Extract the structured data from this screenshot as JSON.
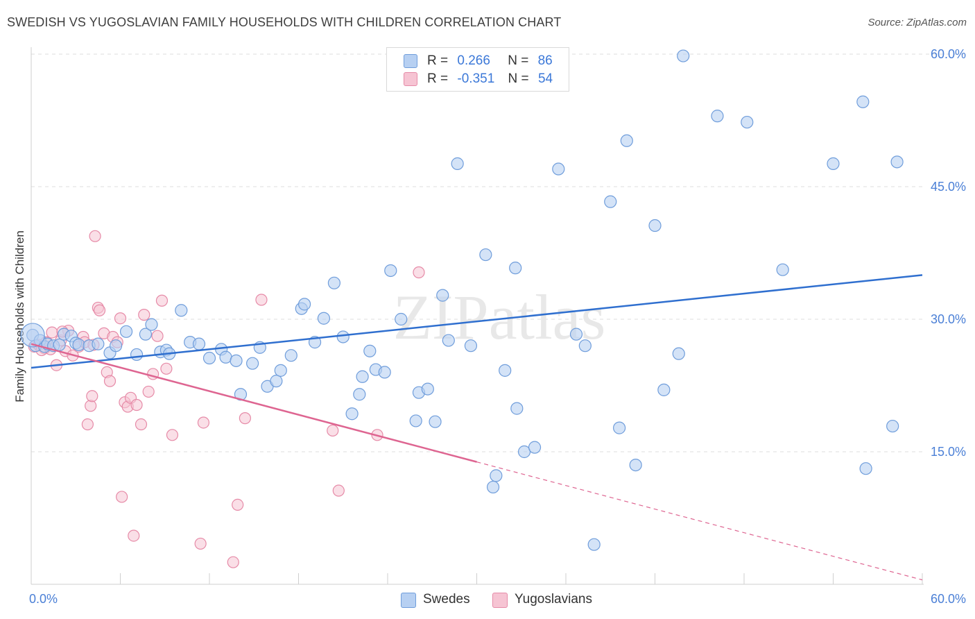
{
  "title": "SWEDISH VS YUGOSLAVIAN FAMILY HOUSEHOLDS WITH CHILDREN CORRELATION CHART",
  "source": "Source: ZipAtlas.com",
  "watermark": "ZIPatlas",
  "colors": {
    "swedes_fill": "#b7d0f2",
    "swedes_stroke": "#6f9ddb",
    "swedes_line": "#2f6fcf",
    "yugo_fill": "#f6c4d3",
    "yugo_stroke": "#e68aa7",
    "yugo_line": "#de6591",
    "axis_label": "#4a7fd6",
    "grid": "#dcdcdc"
  },
  "legend": {
    "rows": [
      {
        "r_label": "R =",
        "r_value": "0.266",
        "n_label": "N =",
        "n_value": "86"
      },
      {
        "r_label": "R =",
        "r_value": "-0.351",
        "n_label": "N =",
        "n_value": "54"
      }
    ]
  },
  "bottom_legend": {
    "swedes": "Swedes",
    "yugoslavians": "Yugoslavians"
  },
  "chart_data": {
    "type": "scatter",
    "xlabel": "",
    "ylabel": "Family Households with Children",
    "xlim": [
      0,
      60
    ],
    "ylim": [
      0,
      60
    ],
    "x_tick_labels": [
      "0.0%",
      "60.0%"
    ],
    "y_tick_labels": [
      "15.0%",
      "30.0%",
      "45.0%",
      "60.0%"
    ],
    "y_ticks": [
      15,
      30,
      45,
      60
    ],
    "x_minor_ticks": [
      0,
      6,
      12,
      18,
      24,
      30,
      36,
      42,
      48,
      54,
      60
    ],
    "grid": true,
    "series": [
      {
        "name": "Swedes",
        "trend": {
          "x": [
            0,
            60
          ],
          "y": [
            24.5,
            35.0
          ],
          "dashed_from": null
        },
        "points": [
          [
            0.1,
            28.2
          ],
          [
            0.3,
            27.0
          ],
          [
            0.6,
            27.6
          ],
          [
            0.9,
            26.9
          ],
          [
            1.1,
            27.2
          ],
          [
            1.5,
            27.0
          ],
          [
            1.9,
            27.1
          ],
          [
            2.2,
            28.3
          ],
          [
            2.7,
            28.1
          ],
          [
            3.0,
            27.3
          ],
          [
            3.2,
            27.1
          ],
          [
            3.9,
            27.0
          ],
          [
            4.5,
            27.2
          ],
          [
            5.3,
            26.2
          ],
          [
            5.7,
            27.0
          ],
          [
            6.4,
            28.6
          ],
          [
            7.1,
            26.0
          ],
          [
            7.7,
            28.3
          ],
          [
            8.1,
            29.4
          ],
          [
            8.7,
            26.3
          ],
          [
            9.1,
            26.5
          ],
          [
            9.3,
            26.1
          ],
          [
            10.1,
            31.0
          ],
          [
            10.7,
            27.4
          ],
          [
            11.3,
            27.2
          ],
          [
            12.0,
            25.6
          ],
          [
            12.8,
            26.6
          ],
          [
            13.1,
            25.7
          ],
          [
            13.8,
            25.3
          ],
          [
            14.1,
            21.5
          ],
          [
            14.9,
            25.0
          ],
          [
            15.4,
            26.8
          ],
          [
            15.9,
            22.4
          ],
          [
            16.5,
            23.0
          ],
          [
            16.8,
            24.2
          ],
          [
            17.5,
            25.9
          ],
          [
            18.2,
            31.2
          ],
          [
            18.4,
            31.7
          ],
          [
            19.1,
            27.4
          ],
          [
            19.7,
            30.1
          ],
          [
            20.4,
            34.1
          ],
          [
            21.0,
            28.0
          ],
          [
            21.6,
            19.3
          ],
          [
            22.1,
            21.5
          ],
          [
            22.3,
            23.5
          ],
          [
            22.8,
            26.4
          ],
          [
            23.2,
            24.3
          ],
          [
            23.8,
            24.0
          ],
          [
            24.2,
            35.5
          ],
          [
            24.9,
            30.0
          ],
          [
            25.9,
            18.5
          ],
          [
            26.1,
            21.7
          ],
          [
            26.7,
            22.1
          ],
          [
            27.2,
            18.4
          ],
          [
            27.7,
            32.7
          ],
          [
            28.1,
            27.6
          ],
          [
            28.7,
            47.6
          ],
          [
            29.6,
            27.0
          ],
          [
            30.6,
            37.3
          ],
          [
            31.1,
            11.0
          ],
          [
            31.3,
            12.3
          ],
          [
            31.9,
            24.2
          ],
          [
            32.6,
            35.8
          ],
          [
            32.7,
            19.9
          ],
          [
            33.2,
            15.0
          ],
          [
            33.9,
            15.5
          ],
          [
            35.5,
            47.0
          ],
          [
            36.7,
            28.3
          ],
          [
            37.3,
            27.0
          ],
          [
            37.9,
            4.5
          ],
          [
            39.0,
            43.3
          ],
          [
            39.6,
            17.7
          ],
          [
            40.1,
            50.2
          ],
          [
            40.7,
            13.5
          ],
          [
            42.0,
            40.6
          ],
          [
            42.6,
            22.0
          ],
          [
            43.6,
            26.1
          ],
          [
            43.9,
            59.8
          ],
          [
            46.2,
            53.0
          ],
          [
            48.2,
            52.3
          ],
          [
            50.6,
            35.6
          ],
          [
            54.0,
            47.6
          ],
          [
            56.0,
            54.6
          ],
          [
            56.2,
            13.1
          ],
          [
            58.0,
            17.9
          ],
          [
            58.3,
            47.8
          ]
        ]
      },
      {
        "name": "Yugoslavians",
        "trend": {
          "x": [
            0,
            60
          ],
          "y": [
            27.2,
            0.5
          ],
          "dashed_from": 30
        },
        "points": [
          [
            0.2,
            26.9
          ],
          [
            0.5,
            27.1
          ],
          [
            0.9,
            26.7
          ],
          [
            1.1,
            27.3
          ],
          [
            1.4,
            28.5
          ],
          [
            1.7,
            24.8
          ],
          [
            2.0,
            27.6
          ],
          [
            2.3,
            26.4
          ],
          [
            2.5,
            28.7
          ],
          [
            2.8,
            25.9
          ],
          [
            3.2,
            26.9
          ],
          [
            3.5,
            28.0
          ],
          [
            3.6,
            27.4
          ],
          [
            3.8,
            18.1
          ],
          [
            4.0,
            20.2
          ],
          [
            4.1,
            21.3
          ],
          [
            4.2,
            27.1
          ],
          [
            4.3,
            39.4
          ],
          [
            4.5,
            31.3
          ],
          [
            4.6,
            31.0
          ],
          [
            4.9,
            28.4
          ],
          [
            5.1,
            24.0
          ],
          [
            5.3,
            23.0
          ],
          [
            5.5,
            28.0
          ],
          [
            5.8,
            27.4
          ],
          [
            6.0,
            30.1
          ],
          [
            6.1,
            9.9
          ],
          [
            6.3,
            20.6
          ],
          [
            6.5,
            20.1
          ],
          [
            6.7,
            21.1
          ],
          [
            6.9,
            5.5
          ],
          [
            7.1,
            20.3
          ],
          [
            7.4,
            18.1
          ],
          [
            7.6,
            30.5
          ],
          [
            7.9,
            21.8
          ],
          [
            8.2,
            23.8
          ],
          [
            8.5,
            28.1
          ],
          [
            8.8,
            32.1
          ],
          [
            9.1,
            24.4
          ],
          [
            9.5,
            16.9
          ],
          [
            11.4,
            4.6
          ],
          [
            11.6,
            18.3
          ],
          [
            13.6,
            2.5
          ],
          [
            13.9,
            9.0
          ],
          [
            14.4,
            18.8
          ],
          [
            15.5,
            32.2
          ],
          [
            20.3,
            17.4
          ],
          [
            20.7,
            10.6
          ],
          [
            23.3,
            16.9
          ],
          [
            26.1,
            35.3
          ],
          [
            1.0,
            27.4
          ],
          [
            0.7,
            26.5
          ],
          [
            1.3,
            26.6
          ],
          [
            2.1,
            28.6
          ]
        ]
      }
    ],
    "large_point": {
      "series": "Swedes",
      "x": 0.1,
      "y": 28.2
    }
  }
}
